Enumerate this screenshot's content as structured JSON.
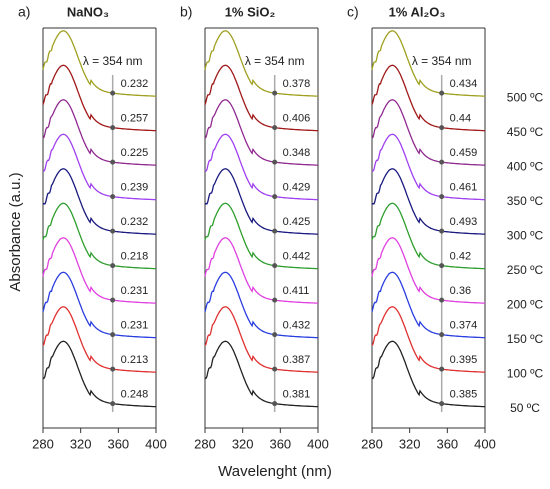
{
  "chart_data": [
    {
      "type": "line",
      "panel": "a)",
      "title": "NaNO₃",
      "annotation": "λ = 354 nm",
      "xlim": [
        280,
        400
      ],
      "xticks": [
        280,
        320,
        360,
        400
      ],
      "values": [
        0.248,
        0.213,
        0.231,
        0.231,
        0.218,
        0.232,
        0.239,
        0.225,
        0.257,
        0.232
      ]
    },
    {
      "type": "line",
      "panel": "b)",
      "title": "1% SiO₂",
      "annotation": "λ = 354 nm",
      "xlim": [
        280,
        400
      ],
      "xticks": [
        280,
        320,
        360,
        400
      ],
      "values": [
        0.381,
        0.387,
        0.432,
        0.411,
        0.442,
        0.425,
        0.429,
        0.348,
        0.406,
        0.378
      ]
    },
    {
      "type": "line",
      "panel": "c)",
      "title": "1% Al₂O₃",
      "annotation": "λ = 354 nm",
      "xlim": [
        280,
        400
      ],
      "xticks": [
        280,
        320,
        360,
        400
      ],
      "values": [
        0.385,
        0.395,
        0.374,
        0.36,
        0.42,
        0.493,
        0.461,
        0.459,
        0.44,
        0.434
      ],
      "temperatures": [
        "50 ºC",
        "100 ºC",
        "150 ºC",
        "200 ºC",
        "250 ºC",
        "300 ºC",
        "350 ºC",
        "400 ºC",
        "450 ºC",
        "500 ºC"
      ]
    }
  ],
  "colors": [
    "#222222",
    "#e03030",
    "#2a3ee0",
    "#e040e0",
    "#2e9e2e",
    "#1a1a80",
    "#a040f0",
    "#902a90",
    "#a01818",
    "#a0a020"
  ],
  "xlabel": "Wavelenght (nm)",
  "ylabel": "Absorbance (a.u.)"
}
